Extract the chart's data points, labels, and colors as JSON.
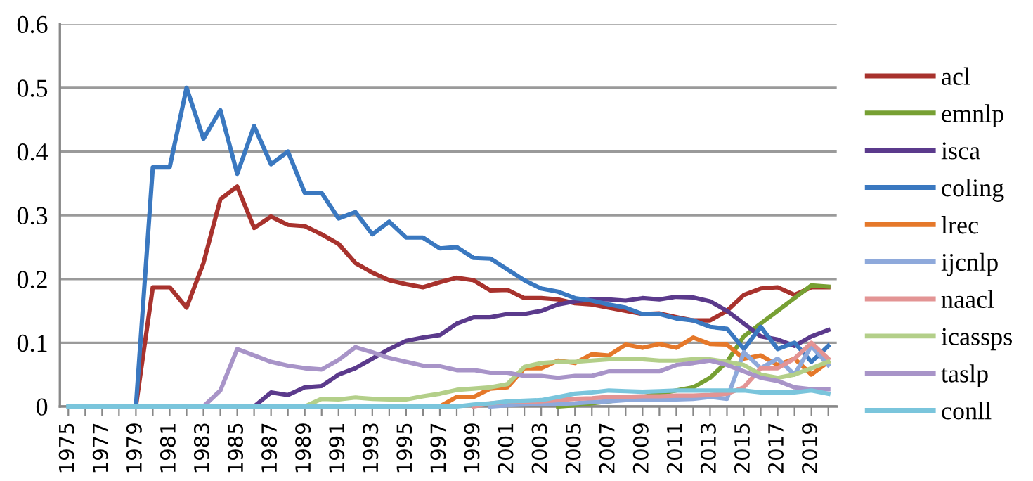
{
  "chart_data": {
    "type": "line",
    "categories": [
      "1975",
      null,
      "1977",
      null,
      "1979",
      null,
      "1981",
      null,
      "1983",
      null,
      "1985",
      null,
      "1987",
      null,
      "1989",
      null,
      "1991",
      null,
      "1993",
      null,
      "1995",
      null,
      "1997",
      null,
      "1999",
      null,
      "2001",
      null,
      "2003",
      null,
      "2005",
      null,
      "2007",
      null,
      "2009",
      null,
      "2011",
      null,
      "2013",
      null,
      "2015",
      null,
      "2017",
      null,
      "2019",
      null
    ],
    "ylim": [
      0,
      0.6
    ],
    "yticks": [
      0,
      0.1,
      0.2,
      0.3,
      0.4,
      0.5,
      0.6
    ],
    "grid": "y",
    "legend": "right",
    "marker": "none",
    "line_style": "solid",
    "series": [
      {
        "name": "acl",
        "color": "#a8322d",
        "values": [
          null,
          null,
          null,
          null,
          0,
          0.187,
          0.187,
          0.155,
          0.225,
          0.325,
          0.345,
          0.28,
          0.298,
          0.285,
          0.283,
          0.27,
          0.255,
          0.225,
          0.21,
          0.198,
          0.192,
          0.187,
          0.195,
          0.202,
          0.198,
          0.182,
          0.183,
          0.17,
          0.17,
          0.168,
          0.162,
          0.16,
          0.155,
          0.15,
          0.145,
          0.146,
          0.14,
          0.135,
          0.135,
          0.15,
          0.175,
          0.185,
          0.187,
          0.175,
          0.187,
          0.187
        ]
      },
      {
        "name": "emnlp",
        "color": "#77a033",
        "values": [
          null,
          null,
          null,
          null,
          null,
          null,
          null,
          null,
          null,
          null,
          null,
          null,
          null,
          null,
          null,
          null,
          null,
          null,
          null,
          null,
          null,
          null,
          null,
          null,
          null,
          null,
          null,
          null,
          null,
          0,
          0.002,
          0.005,
          0.008,
          0.012,
          0.015,
          0.02,
          0.025,
          0.03,
          0.045,
          0.07,
          0.11,
          0.13,
          0.15,
          0.17,
          0.19,
          0.188
        ]
      },
      {
        "name": "isca",
        "color": "#5b3a8c",
        "values": [
          null,
          null,
          null,
          null,
          null,
          null,
          null,
          null,
          null,
          null,
          null,
          0,
          0.022,
          0.018,
          0.03,
          0.032,
          0.05,
          0.06,
          0.075,
          0.09,
          0.103,
          0.108,
          0.112,
          0.13,
          0.14,
          0.14,
          0.145,
          0.145,
          0.15,
          0.16,
          0.165,
          0.168,
          0.168,
          0.166,
          0.17,
          0.168,
          0.172,
          0.171,
          0.165,
          0.15,
          0.13,
          0.11,
          0.105,
          0.095,
          0.11,
          0.12
        ]
      },
      {
        "name": "coling",
        "color": "#3a78c0",
        "values": [
          null,
          null,
          null,
          null,
          0,
          0.375,
          0.375,
          0.5,
          0.42,
          0.465,
          0.365,
          0.44,
          0.38,
          0.4,
          0.335,
          0.335,
          0.295,
          0.305,
          0.27,
          0.29,
          0.265,
          0.265,
          0.248,
          0.25,
          0.233,
          0.232,
          0.215,
          0.198,
          0.185,
          0.18,
          0.17,
          0.166,
          0.16,
          0.155,
          0.145,
          0.145,
          0.138,
          0.135,
          0.125,
          0.122,
          0.09,
          0.125,
          0.09,
          0.1,
          0.07,
          0.095
        ]
      },
      {
        "name": "lrec",
        "color": "#e5782a",
        "values": [
          null,
          null,
          null,
          null,
          null,
          null,
          null,
          null,
          null,
          null,
          null,
          null,
          null,
          null,
          null,
          null,
          null,
          null,
          null,
          null,
          null,
          null,
          0,
          0.015,
          0.015,
          0.028,
          0.03,
          0.06,
          0.06,
          0.072,
          0.068,
          0.082,
          0.08,
          0.097,
          0.092,
          0.098,
          0.092,
          0.108,
          0.098,
          0.097,
          0.075,
          0.08,
          0.065,
          0.075,
          0.05,
          0.07
        ]
      },
      {
        "name": "ijcnlp",
        "color": "#8ea9db",
        "values": [
          null,
          null,
          null,
          null,
          null,
          null,
          null,
          null,
          null,
          null,
          null,
          null,
          null,
          null,
          null,
          null,
          null,
          null,
          null,
          null,
          null,
          null,
          null,
          null,
          null,
          0,
          0.002,
          0.003,
          0.004,
          0.004,
          0.005,
          0.007,
          0.008,
          0.01,
          0.01,
          0.01,
          0.011,
          0.012,
          0.015,
          0.012,
          0.085,
          0.06,
          0.075,
          0.05,
          0.095,
          0.065
        ]
      },
      {
        "name": "naacl",
        "color": "#e39494",
        "values": [
          null,
          null,
          null,
          null,
          null,
          null,
          null,
          null,
          null,
          null,
          null,
          null,
          null,
          null,
          null,
          null,
          null,
          null,
          null,
          null,
          null,
          null,
          null,
          null,
          0,
          0.005,
          0.007,
          0.007,
          0.008,
          0.01,
          0.012,
          0.013,
          0.015,
          0.015,
          0.016,
          0.016,
          0.017,
          0.017,
          0.018,
          0.02,
          0.03,
          0.06,
          0.06,
          0.075,
          0.1,
          0.075
        ]
      },
      {
        "name": "icassps",
        "color": "#b3cf89",
        "values": [
          null,
          null,
          null,
          null,
          null,
          null,
          null,
          null,
          null,
          null,
          null,
          null,
          null,
          null,
          0,
          0.012,
          0.011,
          0.014,
          0.012,
          0.011,
          0.011,
          0.016,
          0.02,
          0.026,
          0.028,
          0.03,
          0.035,
          0.062,
          0.068,
          0.07,
          0.07,
          0.072,
          0.074,
          0.074,
          0.074,
          0.072,
          0.072,
          0.074,
          0.074,
          0.07,
          0.065,
          0.05,
          0.045,
          0.05,
          0.06,
          0.07
        ]
      },
      {
        "name": "taslp",
        "color": "#a894c8",
        "values": [
          null,
          null,
          null,
          null,
          null,
          null,
          null,
          null,
          0,
          0.025,
          0.09,
          0.08,
          0.07,
          0.064,
          0.06,
          0.058,
          0.073,
          0.093,
          0.085,
          0.076,
          0.07,
          0.064,
          0.063,
          0.057,
          0.057,
          0.053,
          0.053,
          0.048,
          0.048,
          0.045,
          0.048,
          0.048,
          0.055,
          0.055,
          0.055,
          0.055,
          0.065,
          0.068,
          0.072,
          0.065,
          0.055,
          0.045,
          0.04,
          0.03,
          0.027,
          0.027
        ]
      },
      {
        "name": "conll",
        "color": "#7ac5dc",
        "values": [
          0,
          0,
          0,
          0,
          0,
          0,
          0,
          0,
          0,
          0,
          0,
          0,
          0,
          0,
          0,
          0,
          0,
          0,
          0,
          0,
          0,
          0,
          0,
          0,
          0.003,
          0.005,
          0.008,
          0.009,
          0.01,
          0.015,
          0.02,
          0.022,
          0.025,
          0.024,
          0.023,
          0.024,
          0.025,
          0.025,
          0.025,
          0.025,
          0.025,
          0.022,
          0.022,
          0.022,
          0.025,
          0.02
        ]
      }
    ]
  }
}
